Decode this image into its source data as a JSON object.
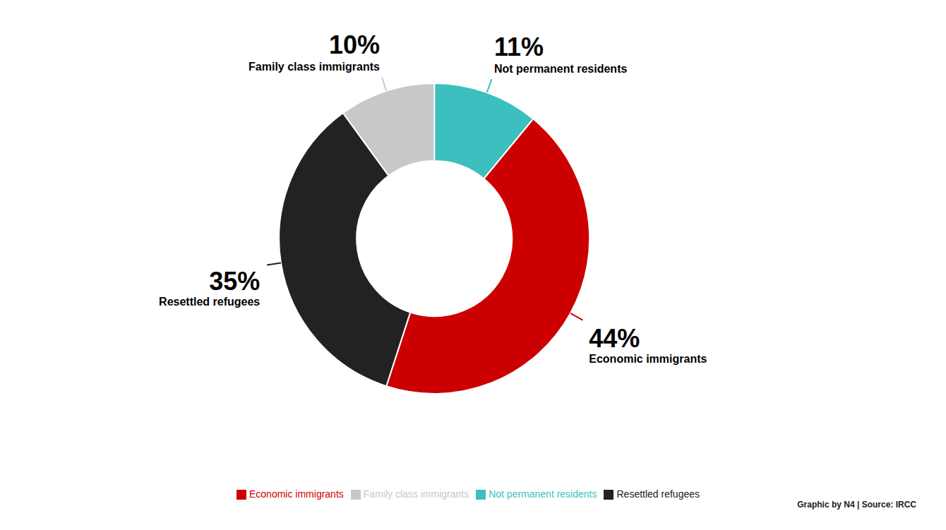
{
  "chart_data": {
    "type": "pie",
    "categories": [
      "Not permanent residents",
      "Economic immigrants",
      "Resettled refugees",
      "Family class immigrants"
    ],
    "values": [
      11,
      44,
      35,
      10
    ],
    "value_labels": [
      "11%",
      "44%",
      "35%",
      "10%"
    ],
    "colors": [
      "#3bbfbf",
      "#cc0000",
      "#222222",
      "#c8c8c8"
    ],
    "data_labels": true,
    "legend": "bottom",
    "annotations": [
      "Graphic by N4 | Source: IRCC"
    ]
  }
}
